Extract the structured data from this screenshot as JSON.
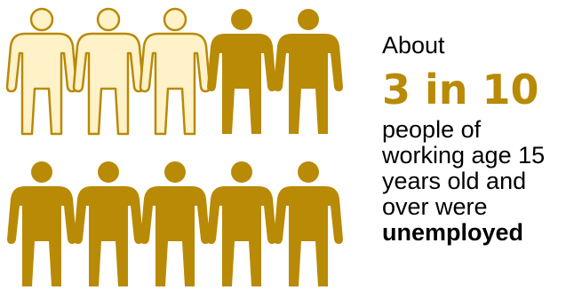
{
  "infographic": {
    "intro": "About",
    "stat": "3 in 10",
    "description_lines": [
      "people of",
      "working age 15",
      "years old and",
      "over were"
    ],
    "emphasis": "unemployed"
  },
  "people": {
    "total": 10,
    "highlighted": 3,
    "icon": "person-icon",
    "colors": {
      "highlighted_fill": "#FFF1C8",
      "highlighted_stroke": "#B88A06",
      "default_fill": "#B88A06",
      "stat_text": "#B88A06"
    }
  }
}
